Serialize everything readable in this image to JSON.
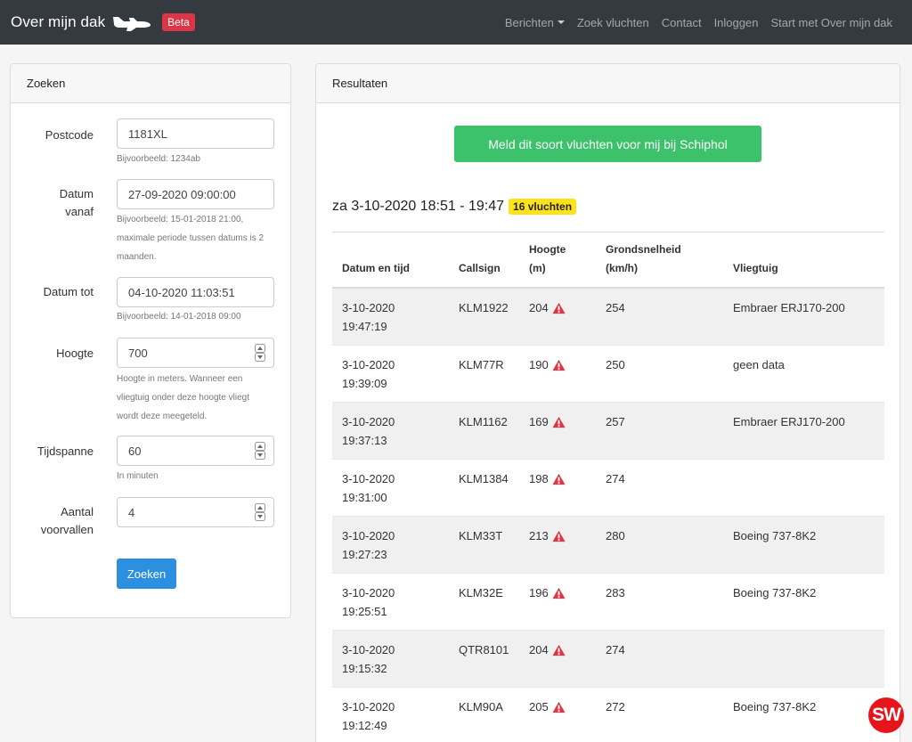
{
  "navbar": {
    "brand": "Over mijn dak",
    "badge": "Beta",
    "links": [
      "Berichten",
      "Zoek vluchten",
      "Contact",
      "Inloggen",
      "Start met Over mijn dak"
    ]
  },
  "search": {
    "title": "Zoeken",
    "postcode": {
      "label": "Postcode",
      "value": "1181XL",
      "help": "Bijvoorbeeld: 1234ab"
    },
    "date_from": {
      "label_1": "Datum",
      "label_2": "vanaf",
      "value": "27-09-2020 09:00:00",
      "help_1": "Bijvoorbeeld: 15-01-2018 21:00,",
      "help_2": "maximale periode tussen datums is 2",
      "help_3": "maanden."
    },
    "date_to": {
      "label": "Datum tot",
      "value": "04-10-2020 11:03:51",
      "help": "Bijvoorbeeld: 14-01-2018 09:00"
    },
    "height": {
      "label": "Hoogte",
      "value": "700",
      "help_1": "Hoogte in meters. Wanneer een",
      "help_2": "vliegtuig onder deze hoogte vliegt",
      "help_3": "wordt deze meegeteld."
    },
    "timespan": {
      "label": "Tijdspanne",
      "value": "60",
      "help": "In minuten"
    },
    "incidents": {
      "label_1": "Aantal",
      "label_2": "voorvallen",
      "value": "4"
    },
    "submit": "Zoeken"
  },
  "results": {
    "title": "Resultaten",
    "report_button": "Meld dit soort vluchten voor mij bij Schiphol",
    "heading": "za 3-10-2020 18:51 - 19:47",
    "count": "16 vluchten",
    "columns": {
      "datetime": "Datum en tijd",
      "callsign": "Callsign",
      "height_1": "Hoogte",
      "height_2": "(m)",
      "speed_1": "Grondsnelheid",
      "speed_2": "(km/h)",
      "aircraft": "Vliegtuig"
    },
    "rows": [
      {
        "date": "3-10-2020",
        "time": "19:47:19",
        "callsign": "KLM1922",
        "height": "204",
        "speed": "254",
        "aircraft": "Embraer ERJ170-200"
      },
      {
        "date": "3-10-2020",
        "time": "19:39:09",
        "callsign": "KLM77R",
        "height": "190",
        "speed": "250",
        "aircraft": "geen data"
      },
      {
        "date": "3-10-2020",
        "time": "19:37:13",
        "callsign": "KLM1162",
        "height": "169",
        "speed": "257",
        "aircraft": "Embraer ERJ170-200"
      },
      {
        "date": "3-10-2020",
        "time": "19:31:00",
        "callsign": "KLM1384",
        "height": "198",
        "speed": "274",
        "aircraft": ""
      },
      {
        "date": "3-10-2020",
        "time": "19:27:23",
        "callsign": "KLM33T",
        "height": "213",
        "speed": "280",
        "aircraft": "Boeing 737-8K2"
      },
      {
        "date": "3-10-2020",
        "time": "19:25:51",
        "callsign": "KLM32E",
        "height": "196",
        "speed": "283",
        "aircraft": "Boeing 737-8K2"
      },
      {
        "date": "3-10-2020",
        "time": "19:15:32",
        "callsign": "QTR8101",
        "height": "204",
        "speed": "274",
        "aircraft": ""
      },
      {
        "date": "3-10-2020",
        "time": "19:12:49",
        "callsign": "KLM90A",
        "height": "205",
        "speed": "272",
        "aircraft": "Boeing 737-8K2"
      }
    ]
  },
  "watermark": "SW",
  "colors": {
    "navbar": "#343a40",
    "beta": "#dc3545",
    "primary": "#2d8fdf",
    "success": "#3cc26a",
    "highlight": "#ffe31a",
    "warning_icon": "#dc3545"
  },
  "icons": {
    "brand": "airplane-icon",
    "warning": "warning-triangle-icon",
    "spinner": "number-spinner-icon"
  }
}
